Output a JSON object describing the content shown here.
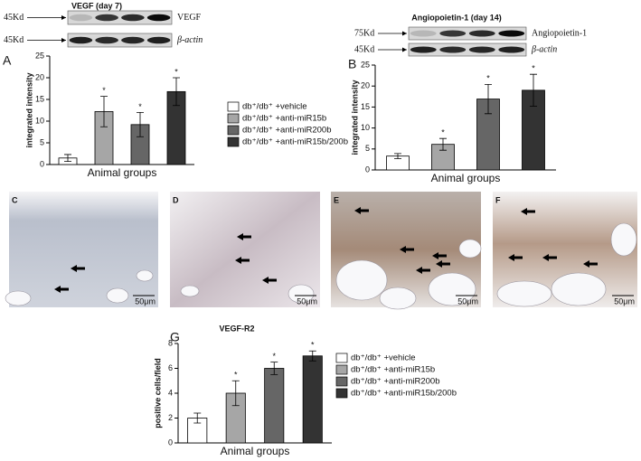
{
  "chart_data": [
    {
      "type": "bar",
      "panel": "A",
      "title": "VEGF (day 7)",
      "blot": [
        {
          "marker": "45Kd",
          "label": "VEGF"
        },
        {
          "marker": "45Kd",
          "label": "β-actin"
        }
      ],
      "categories": [
        "db⁺/db⁺ +vehicle",
        "db⁺/db⁺ +anti-miR15b",
        "db⁺/db⁺ +anti-miR200b",
        "db⁺/db⁺ +anti-miR15b/200b"
      ],
      "colors": [
        "#ffffff",
        "#a6a6a6",
        "#666666",
        "#333333"
      ],
      "values": [
        1.5,
        12.2,
        9.2,
        16.8
      ],
      "errors": [
        0.8,
        3.5,
        2.8,
        3.2
      ],
      "significance": [
        null,
        "*",
        "*",
        "*"
      ],
      "ylabel": "integrated intensity",
      "xlabel": "Animal groups",
      "ylim": [
        0,
        25
      ],
      "yticks": [
        0,
        5,
        10,
        15,
        20,
        25
      ],
      "legend": true
    },
    {
      "type": "bar",
      "panel": "B",
      "title": "Angiopoietin-1 (day 14)",
      "blot": [
        {
          "marker": "75Kd",
          "label": "Angiopoietin-1"
        },
        {
          "marker": "45Kd",
          "label": "β-actin"
        }
      ],
      "colors": [
        "#ffffff",
        "#a6a6a6",
        "#666666",
        "#333333"
      ],
      "values": [
        3.3,
        6.1,
        16.9,
        19.0
      ],
      "errors": [
        0.6,
        1.4,
        3.5,
        3.8
      ],
      "significance": [
        null,
        "*",
        "*",
        "*"
      ],
      "ylabel": "integrated intensity",
      "xlabel": "Animal groups",
      "ylim": [
        0,
        25
      ],
      "yticks": [
        0,
        5,
        10,
        15,
        20,
        25
      ],
      "legend": false
    },
    {
      "type": "bar",
      "panel": "G",
      "title": "VEGF-R2",
      "categories": [
        "db⁺/db⁺ +vehicle",
        "db⁺/db⁺ +anti-miR15b",
        "db⁺/db⁺ +anti-miR200b",
        "db⁺/db⁺ +anti-miR15b/200b"
      ],
      "colors": [
        "#ffffff",
        "#a6a6a6",
        "#666666",
        "#333333"
      ],
      "values": [
        2.0,
        4.0,
        6.0,
        7.0
      ],
      "errors": [
        0.4,
        1.0,
        0.5,
        0.4
      ],
      "significance": [
        null,
        "*",
        "*",
        "*"
      ],
      "ylabel": "positive cells/field",
      "xlabel": "Animal groups",
      "ylim": [
        0,
        8
      ],
      "yticks": [
        0,
        2,
        4,
        6,
        8
      ],
      "legend": true
    }
  ],
  "histology": {
    "panels": [
      {
        "label": "C",
        "scale": "50μm"
      },
      {
        "label": "D",
        "scale": "50μm"
      },
      {
        "label": "E",
        "scale": "50μm"
      },
      {
        "label": "F",
        "scale": "50μm"
      }
    ]
  }
}
